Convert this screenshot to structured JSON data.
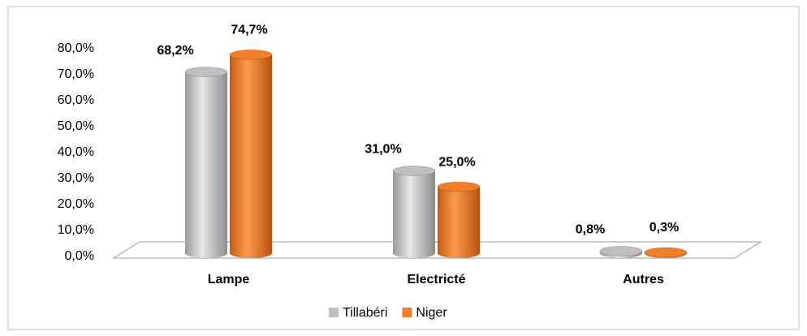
{
  "chart_data": {
    "type": "bar3d",
    "categories": [
      "Lampe",
      "Electricté",
      "Autres"
    ],
    "series": [
      {
        "name": "Tillabéri",
        "color": "#bfbfbf",
        "values": [
          68.2,
          31.0,
          0.8
        ],
        "value_labels": [
          "68,2%",
          "31,0%",
          "0,8%"
        ]
      },
      {
        "name": "Niger",
        "color": "#f07f2a",
        "values": [
          74.7,
          25.0,
          0.3
        ],
        "value_labels": [
          "74,7%",
          "25,0%",
          "0,3%"
        ]
      }
    ],
    "ylim": [
      0,
      80
    ],
    "yticks": [
      {
        "value": 0,
        "label": "0,0%"
      },
      {
        "value": 10,
        "label": "10,0%"
      },
      {
        "value": 20,
        "label": "20,0%"
      },
      {
        "value": 30,
        "label": "30,0%"
      },
      {
        "value": 40,
        "label": "40,0%"
      },
      {
        "value": 50,
        "label": "50,0%"
      },
      {
        "value": 60,
        "label": "60,0%"
      },
      {
        "value": 70,
        "label": "70,0%"
      },
      {
        "value": 80,
        "label": "80,0%"
      }
    ],
    "legend": "bottom"
  }
}
